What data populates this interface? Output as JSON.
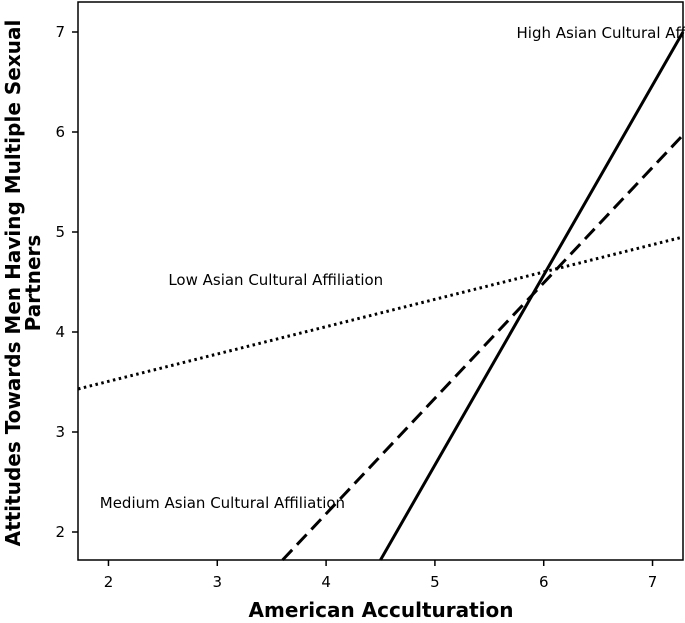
{
  "chart_data": {
    "type": "line",
    "title": "",
    "xlabel": "American Acculturation",
    "ylabel_lines": [
      "Attitudes Towards Men Having Multiple Sexual",
      "Partners"
    ],
    "xlim": [
      1.72,
      7.28
    ],
    "ylim": [
      1.72,
      7.3
    ],
    "x_ticks": [
      2,
      3,
      4,
      5,
      6,
      7
    ],
    "y_ticks": [
      2,
      3,
      4,
      5,
      6,
      7
    ],
    "grid": false,
    "series": [
      {
        "name": "High Asian Cultural Affiliation",
        "style": "solid",
        "x": [
          4.5,
          7.28
        ],
        "y": [
          1.72,
          7.0
        ]
      },
      {
        "name": "Medium Asian Cultural Affiliation",
        "style": "dashed",
        "x": [
          3.6,
          7.28
        ],
        "y": [
          1.72,
          5.97
        ]
      },
      {
        "name": "Low Asian Cultural Affiliation",
        "style": "dotted",
        "x": [
          1.72,
          7.28
        ],
        "y": [
          3.43,
          4.95
        ]
      }
    ],
    "annotations": [
      {
        "text": "High Asian Cultural Affiliation",
        "x": 5.75,
        "y": 6.94,
        "anchor": "start"
      },
      {
        "text": "Low Asian Cultural Affiliation",
        "x": 2.55,
        "y": 4.47,
        "anchor": "start"
      },
      {
        "text": "Medium Asian Cultural Affiliation",
        "x": 1.92,
        "y": 2.24,
        "anchor": "start"
      }
    ]
  }
}
